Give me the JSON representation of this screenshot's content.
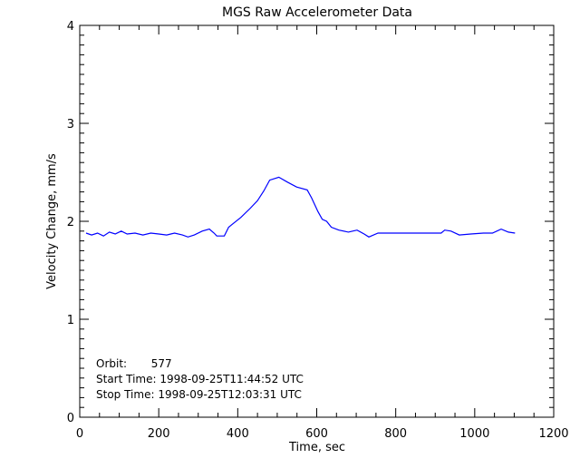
{
  "chart_data": {
    "type": "line",
    "title": "MGS Raw Accelerometer Data",
    "xlabel": "Time, sec",
    "ylabel": "Velocity Change, mm/s",
    "xlim": [
      0,
      1200
    ],
    "ylim": [
      0,
      4
    ],
    "xticks": [
      0,
      200,
      400,
      600,
      800,
      1000,
      1200
    ],
    "yticks": [
      0,
      1,
      2,
      3,
      4
    ],
    "grid": false,
    "line_color": "#0000ff",
    "annotations": [
      "Orbit:       577",
      "Start Time: 1998-09-25T11:44:52 UTC",
      "Stop Time: 1998-09-25T12:03:31 UTC"
    ],
    "series": [
      {
        "x": [
          16,
          30,
          45,
          60,
          75,
          90,
          105,
          120,
          140,
          160,
          180,
          200,
          220,
          240,
          260,
          274,
          290,
          310,
          328,
          340,
          347,
          366,
          377,
          408,
          431,
          450,
          466,
          481,
          504,
          526,
          549,
          576,
          587,
          603,
          614,
          625,
          637,
          656,
          680,
          702,
          720,
          732,
          755,
          780,
          832,
          880,
          915,
          924,
          940,
          961,
          990,
          1022,
          1045,
          1067,
          1085,
          1102
        ],
        "y": [
          1.88,
          1.86,
          1.88,
          1.85,
          1.89,
          1.87,
          1.9,
          1.87,
          1.88,
          1.86,
          1.88,
          1.87,
          1.86,
          1.88,
          1.86,
          1.84,
          1.86,
          1.9,
          1.92,
          1.88,
          1.85,
          1.85,
          1.94,
          2.04,
          2.13,
          2.21,
          2.31,
          2.42,
          2.45,
          2.4,
          2.35,
          2.32,
          2.24,
          2.1,
          2.02,
          2.0,
          1.94,
          1.91,
          1.89,
          1.91,
          1.87,
          1.84,
          1.88,
          1.88,
          1.88,
          1.88,
          1.88,
          1.91,
          1.9,
          1.86,
          1.87,
          1.88,
          1.88,
          1.92,
          1.89,
          1.88
        ]
      }
    ]
  }
}
